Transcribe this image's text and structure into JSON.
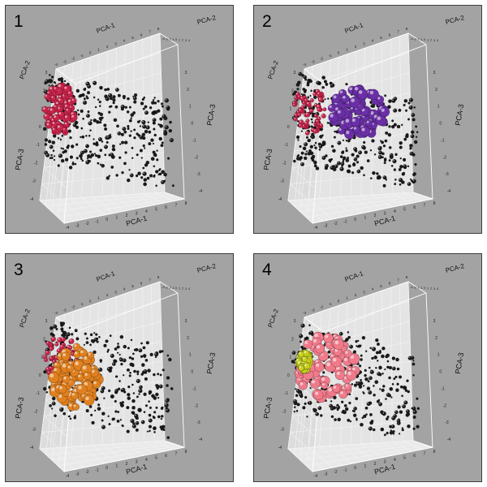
{
  "figure": {
    "type": "3D PCA scatter plot panels",
    "layout": "2x2"
  },
  "chart_data": [
    {
      "type": "scatter",
      "panel": "1",
      "axes": {
        "x": "PCA-1",
        "y": "PCA-2",
        "z": "PCA-3"
      },
      "x_ticks": [
        "-4",
        "-3",
        "-2",
        "-1",
        "0",
        "1",
        "2",
        "3",
        "4",
        "5",
        "6",
        "7",
        "8"
      ],
      "z_ticks": [
        "-4",
        "-3",
        "-2",
        "-1",
        "0",
        "1",
        "2",
        "3"
      ],
      "y_ticks": [
        "-4",
        "-3",
        "-2",
        "-1",
        "0",
        "1",
        "2",
        "3"
      ],
      "top_ticks": [
        "-4",
        "-3",
        "-2",
        "-1",
        "0",
        "1",
        "2",
        "3",
        "4",
        "5",
        "6",
        "7",
        "8"
      ],
      "background_cloud_color": "#1a1a1a",
      "highlight_groups": [
        {
          "color": "#c8234a",
          "size": "medium",
          "region": "left-cluster"
        }
      ]
    },
    {
      "type": "scatter",
      "panel": "2",
      "axes": {
        "x": "PCA-1",
        "y": "PCA-2",
        "z": "PCA-3"
      },
      "x_ticks": [
        "-4",
        "-3",
        "-2",
        "-1",
        "0",
        "1",
        "2",
        "3",
        "4",
        "5",
        "6",
        "7",
        "8"
      ],
      "z_ticks": [
        "-4",
        "-3",
        "-2",
        "-1",
        "0",
        "1",
        "2",
        "3"
      ],
      "y_ticks": [
        "-4",
        "-3",
        "-2",
        "-1",
        "0",
        "1",
        "2",
        "3"
      ],
      "top_ticks": [
        "-4",
        "-3",
        "-2",
        "-1",
        "0",
        "1",
        "2",
        "3",
        "4",
        "5",
        "6",
        "7",
        "8"
      ],
      "background_cloud_color": "#1a1a1a",
      "highlight_groups": [
        {
          "color": "#c8234a",
          "size": "small",
          "region": "left-cluster"
        },
        {
          "color": "#6a2fa6",
          "size": "large",
          "region": "center-right"
        }
      ]
    },
    {
      "type": "scatter",
      "panel": "3",
      "axes": {
        "x": "PCA-1",
        "y": "PCA-2",
        "z": "PCA-3"
      },
      "x_ticks": [
        "-4",
        "-3",
        "-2",
        "-1",
        "0",
        "1",
        "2",
        "3",
        "4",
        "5",
        "6",
        "7",
        "8"
      ],
      "z_ticks": [
        "-4",
        "-3",
        "-2",
        "-1",
        "0",
        "1",
        "2",
        "3"
      ],
      "y_ticks": [
        "-4",
        "-3",
        "-2",
        "-1",
        "0",
        "1",
        "2",
        "3"
      ],
      "top_ticks": [
        "-4",
        "-3",
        "-2",
        "-1",
        "0",
        "1",
        "2",
        "3",
        "4",
        "5",
        "6",
        "7",
        "8"
      ],
      "background_cloud_color": "#1a1a1a",
      "highlight_groups": [
        {
          "color": "#c8234a",
          "size": "small",
          "region": "left-cluster"
        },
        {
          "color": "#e0801f",
          "size": "large",
          "region": "left-lower"
        }
      ]
    },
    {
      "type": "scatter",
      "panel": "4",
      "axes": {
        "x": "PCA-1",
        "y": "PCA-2",
        "z": "PCA-3"
      },
      "x_ticks": [
        "-4",
        "-3",
        "-2",
        "-1",
        "0",
        "1",
        "2",
        "3",
        "4",
        "5",
        "6",
        "7",
        "8"
      ],
      "z_ticks": [
        "-4",
        "-3",
        "-2",
        "-1",
        "0",
        "1",
        "2",
        "3"
      ],
      "y_ticks": [
        "-4",
        "-3",
        "-2",
        "-1",
        "0",
        "1",
        "2",
        "3"
      ],
      "top_ticks": [
        "-4",
        "-3",
        "-2",
        "-1",
        "0",
        "1",
        "2",
        "3",
        "4",
        "5",
        "6",
        "7",
        "8"
      ],
      "background_cloud_color": "#1a1a1a",
      "highlight_groups": [
        {
          "color": "#f07a8a",
          "size": "large",
          "region": "left-center"
        },
        {
          "color": "#c8d21e",
          "size": "medium",
          "region": "left-edge"
        }
      ]
    }
  ]
}
